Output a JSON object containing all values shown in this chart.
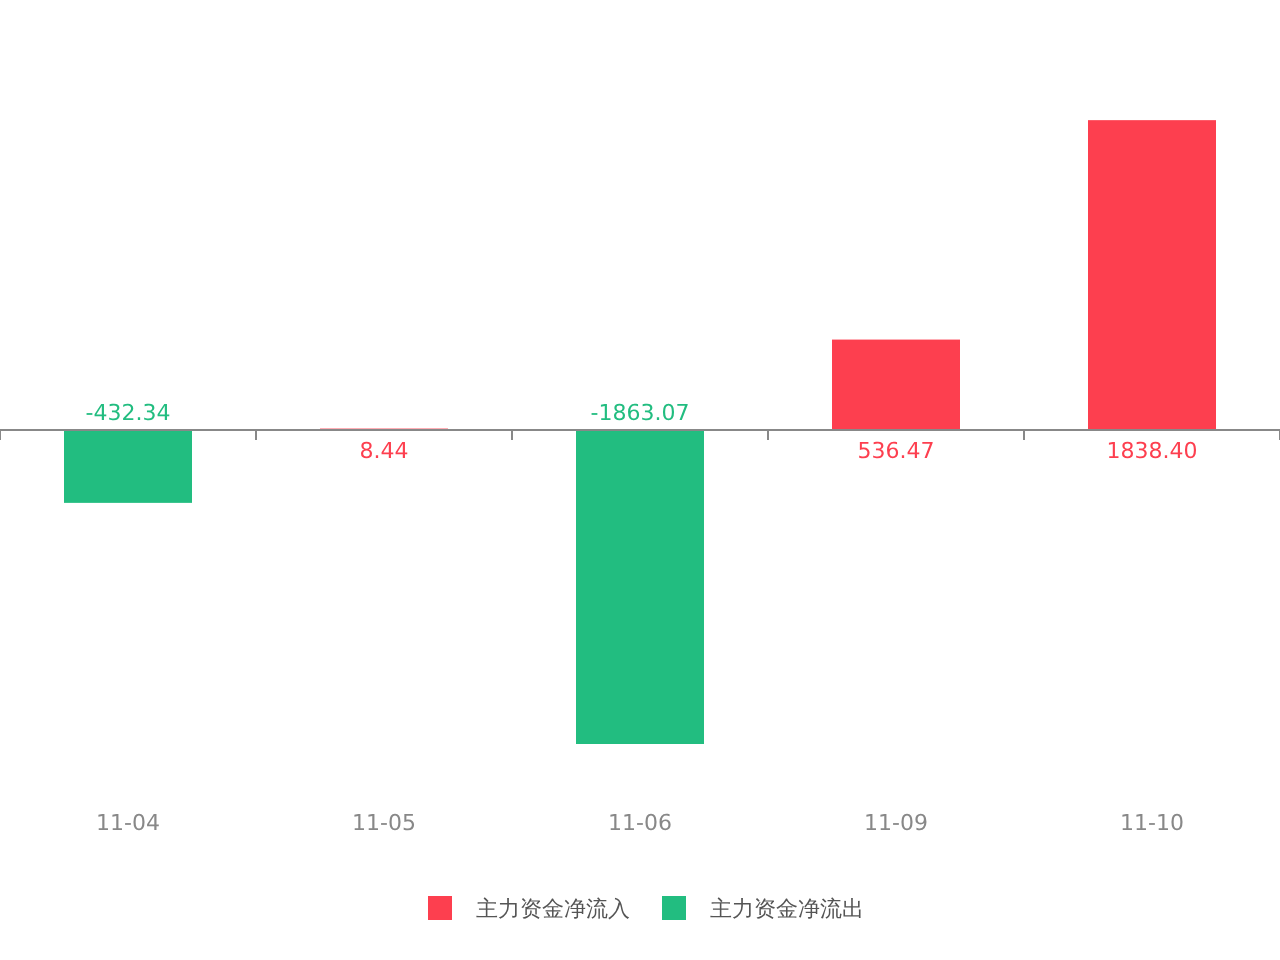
{
  "chart_data": {
    "type": "bar",
    "categories": [
      "11-04",
      "11-05",
      "11-06",
      "11-09",
      "11-10"
    ],
    "series": [
      {
        "name": "主力资金净流入",
        "color": "#fd3f4f",
        "values": [
          null,
          8.44,
          null,
          536.47,
          1838.4
        ],
        "value_labels": [
          null,
          "8.44",
          null,
          "536.47",
          "1838.40"
        ]
      },
      {
        "name": "主力资金净流出",
        "color": "#22bd80",
        "values": [
          -432.34,
          null,
          -1863.07,
          null,
          null
        ],
        "value_labels": [
          "-432.34",
          null,
          "-1863.07",
          null,
          null
        ]
      }
    ],
    "legend": "bottom"
  }
}
